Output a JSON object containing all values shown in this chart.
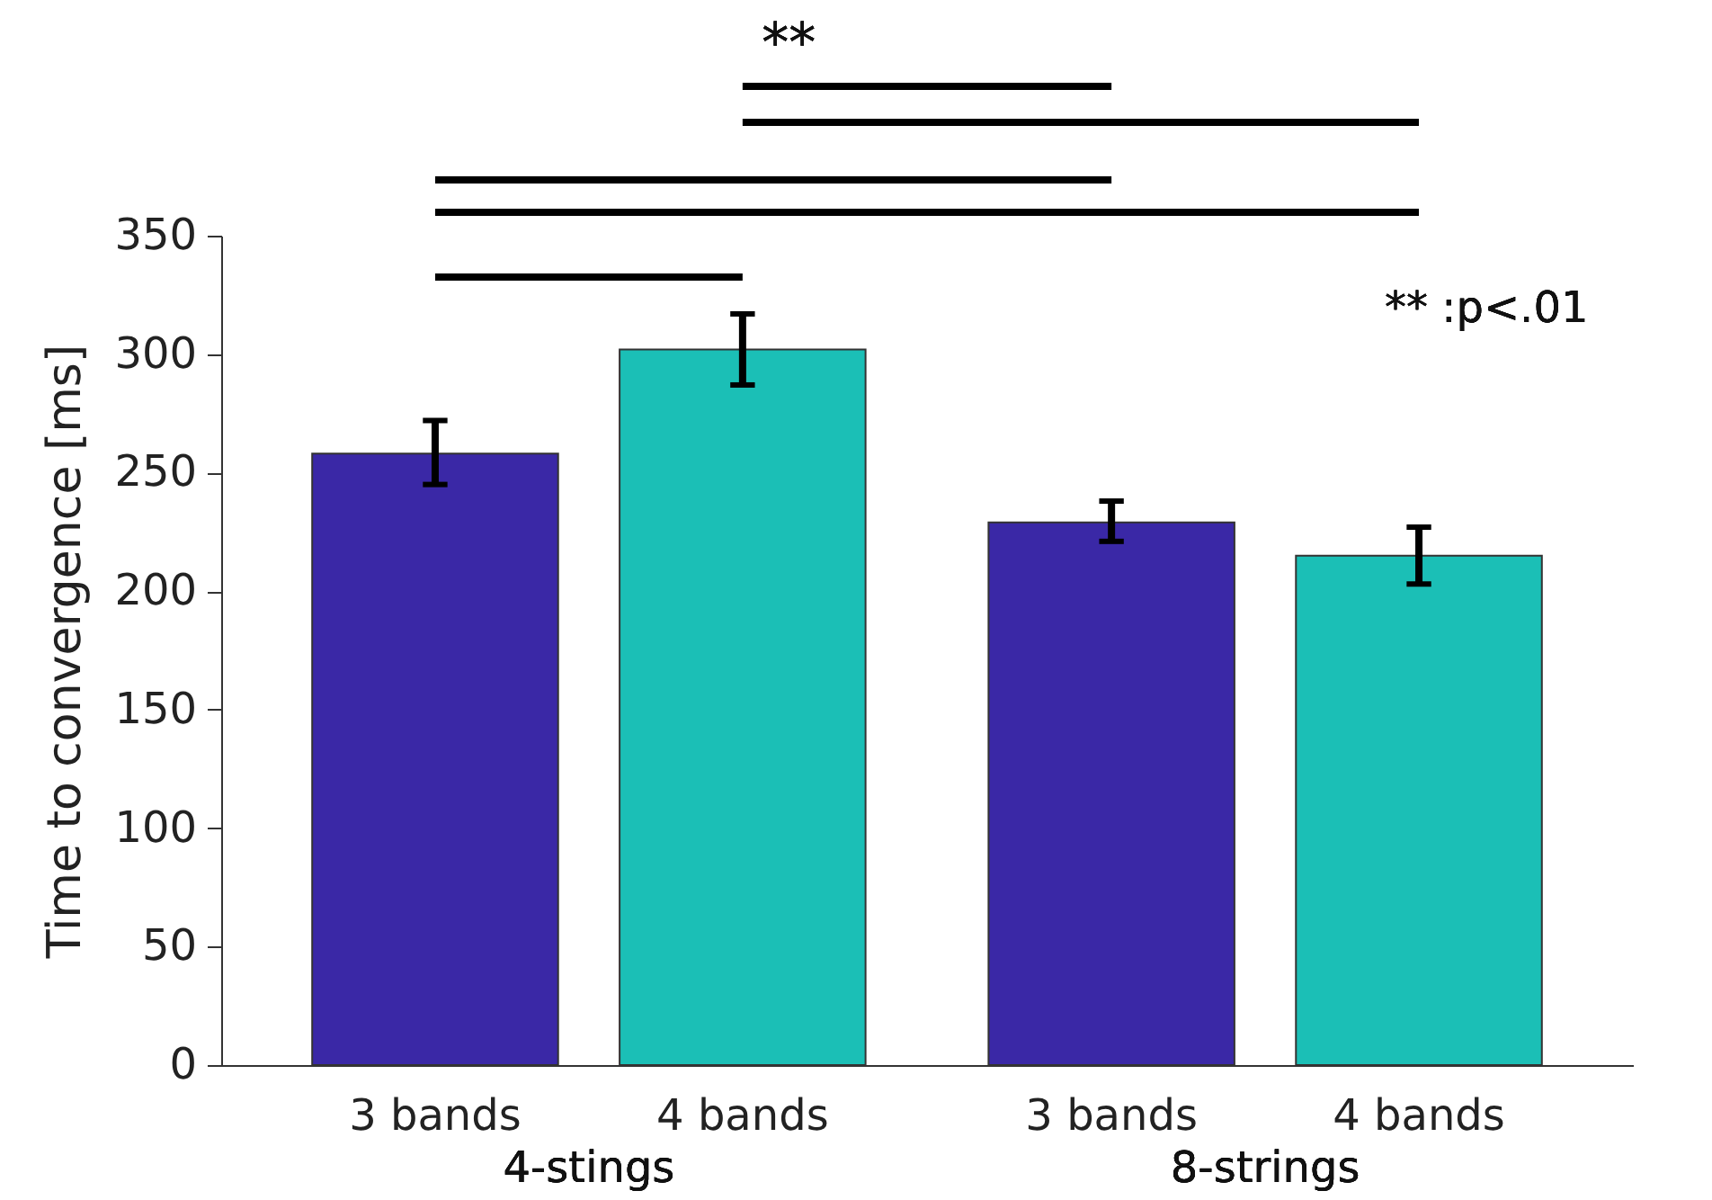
{
  "chart_data": {
    "type": "bar",
    "ylabel": "Time to convergence [ms]",
    "categories": [
      "3 bands",
      "4 bands",
      "3 bands",
      "4 bands"
    ],
    "series": [
      {
        "colors": [
          "#3a28a6",
          "#1bbfb6",
          "#3a28a6",
          "#1bbfb6"
        ],
        "values": [
          258,
          302,
          229,
          215
        ],
        "errors": [
          [
            245,
            272
          ],
          [
            287,
            317
          ],
          [
            221,
            238
          ],
          [
            203,
            227
          ]
        ]
      }
    ],
    "ylim": [
      0,
      350
    ],
    "yticks": [
      0,
      50,
      100,
      150,
      200,
      250,
      300,
      350
    ],
    "grid": false,
    "annotations": [
      "**",
      "**   :p<.01",
      "4-stings",
      "8-strings"
    ]
  }
}
